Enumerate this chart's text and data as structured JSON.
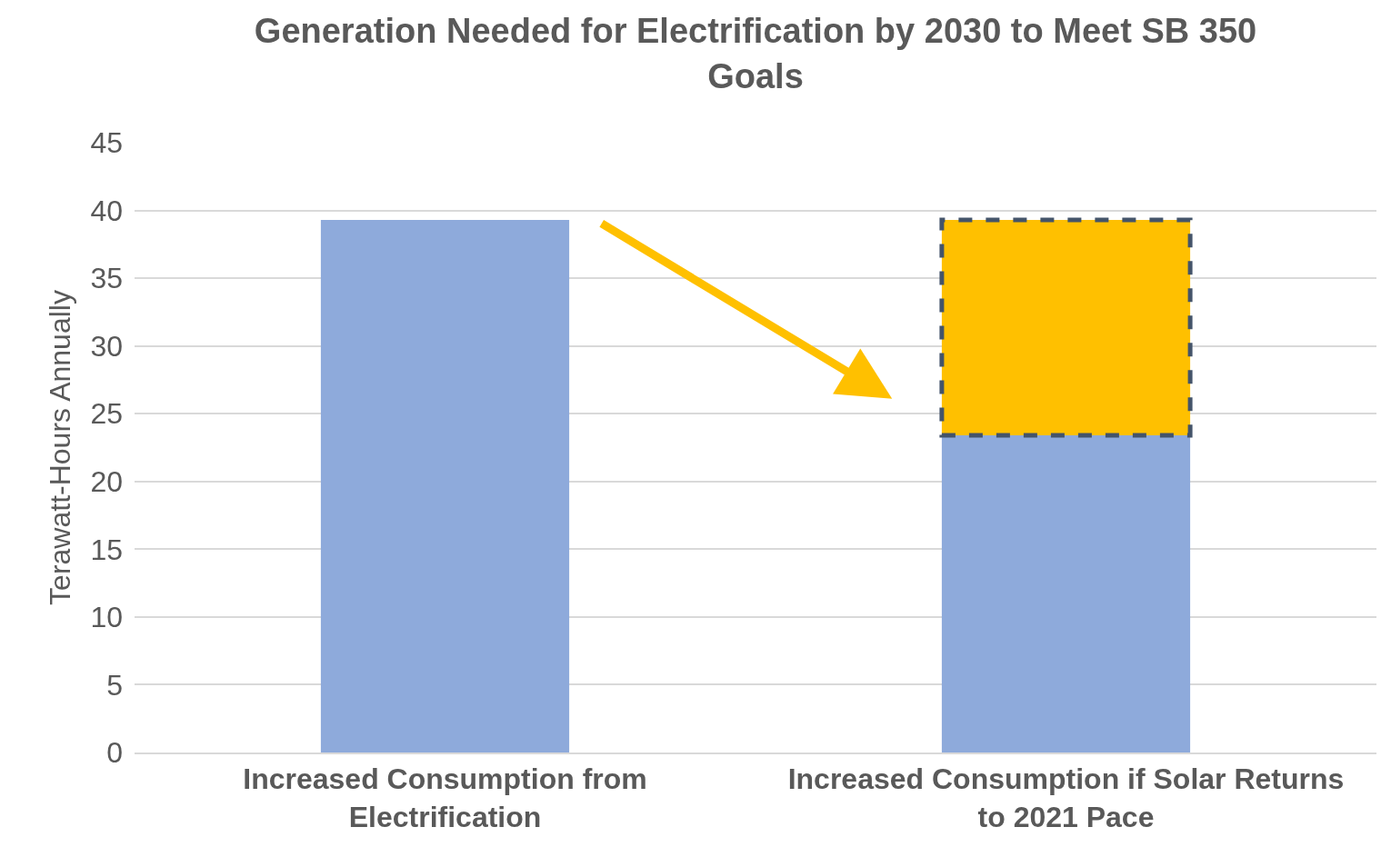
{
  "chart_data": {
    "type": "bar",
    "title": "Generation Needed for Electrification by 2030 to Meet SB 350 Goals",
    "ylabel": "Terawatt-Hours Annually",
    "categories": [
      "Increased Consumption from Electrification",
      "Increased Consumption if Solar Returns to 2021 Pace"
    ],
    "stacked": true,
    "series": [
      {
        "color": "#8eaadb",
        "values": [
          39.3,
          23.4
        ]
      },
      {
        "color": "#ffc000",
        "values": [
          null,
          15.9
        ],
        "line_style": "dashed"
      }
    ],
    "ylim": [
      0,
      45
    ],
    "yticks": [
      0,
      5,
      10,
      15,
      20,
      25,
      30,
      35,
      40,
      45
    ],
    "grid": "y"
  }
}
